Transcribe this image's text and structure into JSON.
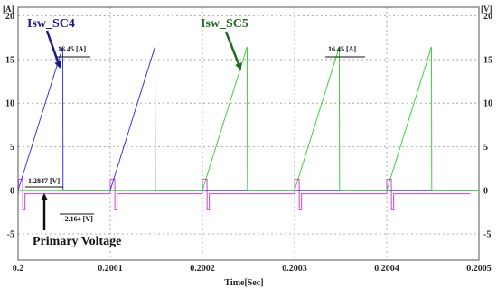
{
  "chart_data": {
    "type": "line",
    "xlabel": "Time[Sec]",
    "ylabel_left": "[A]",
    "ylabel_right": "[V]",
    "xlim": [
      0.2,
      0.2005
    ],
    "ylim": [
      -8,
      21
    ],
    "x_ticks": [
      0.2,
      0.2001,
      0.2002,
      0.2003,
      0.2004,
      0.2005
    ],
    "x_tick_labels": [
      "0.2",
      "0.2001",
      "0.2002",
      "0.2003",
      "0.2004",
      "0.2005"
    ],
    "y_ticks": [
      -5,
      0,
      5,
      10,
      15,
      20
    ],
    "y_tick_labels": [
      "-5",
      "0",
      "5",
      "10",
      "15",
      "20"
    ],
    "grid": true,
    "series": [
      {
        "name": "Isw_SC4",
        "color": "#3a3ad8",
        "x": [
          0.2,
          0.2000485,
          0.2000485,
          0.2000488,
          0.2000488,
          0.2001,
          0.2001485,
          0.2001485,
          0.2001488,
          0.2001488,
          0.2005
        ],
        "y": [
          0,
          16.45,
          16.45,
          0,
          0,
          0,
          16.45,
          16.45,
          0,
          0,
          0
        ]
      },
      {
        "name": "Isw_SC5",
        "color": "#40d040",
        "x": [
          0.2,
          0.2002,
          0.2002485,
          0.2002485,
          0.2002488,
          0.2002488,
          0.2003,
          0.2003485,
          0.2003485,
          0.2003488,
          0.2003488,
          0.2004,
          0.2004485,
          0.2004485,
          0.2004488,
          0.2004488,
          0.2005
        ],
        "y": [
          0,
          0,
          16.45,
          16.45,
          0,
          0,
          0,
          16.45,
          16.45,
          0,
          0,
          0,
          16.45,
          16.45,
          0,
          0,
          0
        ]
      },
      {
        "name": "Primary Voltage",
        "color": "#d040d0",
        "x": [
          0.2,
          0.2000005,
          0.2000005,
          0.20000495,
          0.20000495,
          0.20000505,
          0.20000505,
          0.2000075,
          0.2000075,
          0.2001,
          0.2001,
          0.20010495,
          0.20010495,
          0.20010505,
          0.20010505,
          0.2001075,
          0.2001075,
          0.2002,
          0.2002,
          0.20020495,
          0.20020495,
          0.20020505,
          0.20020505,
          0.2002075,
          0.2002075,
          0.2003,
          0.2003,
          0.20030495,
          0.20030495,
          0.20030505,
          0.20030505,
          0.2003075,
          0.2003075,
          0.2004,
          0.2004,
          0.20040495,
          0.20040495,
          0.20040505,
          0.20040505,
          0.2004075,
          0.2004075,
          0.2004905
        ],
        "y": [
          -0.4,
          -0.4,
          1.2847,
          1.2847,
          0.4,
          0.4,
          -2.164,
          -2.164,
          -0.4,
          -0.4,
          1.2847,
          1.2847,
          0.4,
          0.4,
          -2.164,
          -2.164,
          -0.4,
          -0.4,
          1.2847,
          1.2847,
          0.4,
          0.4,
          -2.164,
          -2.164,
          -0.4,
          -0.4,
          1.2847,
          1.2847,
          0.4,
          0.4,
          -2.164,
          -2.164,
          -0.4,
          -0.4,
          1.2847,
          1.2847,
          0.4,
          0.4,
          -2.164,
          -2.164,
          -0.4,
          -0.4
        ]
      }
    ],
    "annotations": {
      "isw_sc4": "Isw_SC4",
      "isw_sc5": "Isw_SC5",
      "primary_voltage": "Primary Voltage",
      "peak_sc4": "16.45 [A]",
      "peak_sc5": "16.45 [A]",
      "v_high": "1.2847 [V]",
      "v_low": "-2.164 [V]"
    },
    "colors": {
      "axis": "#555555",
      "grid": "#9a9a9a",
      "label_blue": "#1a1a8c",
      "label_green": "#1f6b1f",
      "label_black": "#111111"
    }
  }
}
